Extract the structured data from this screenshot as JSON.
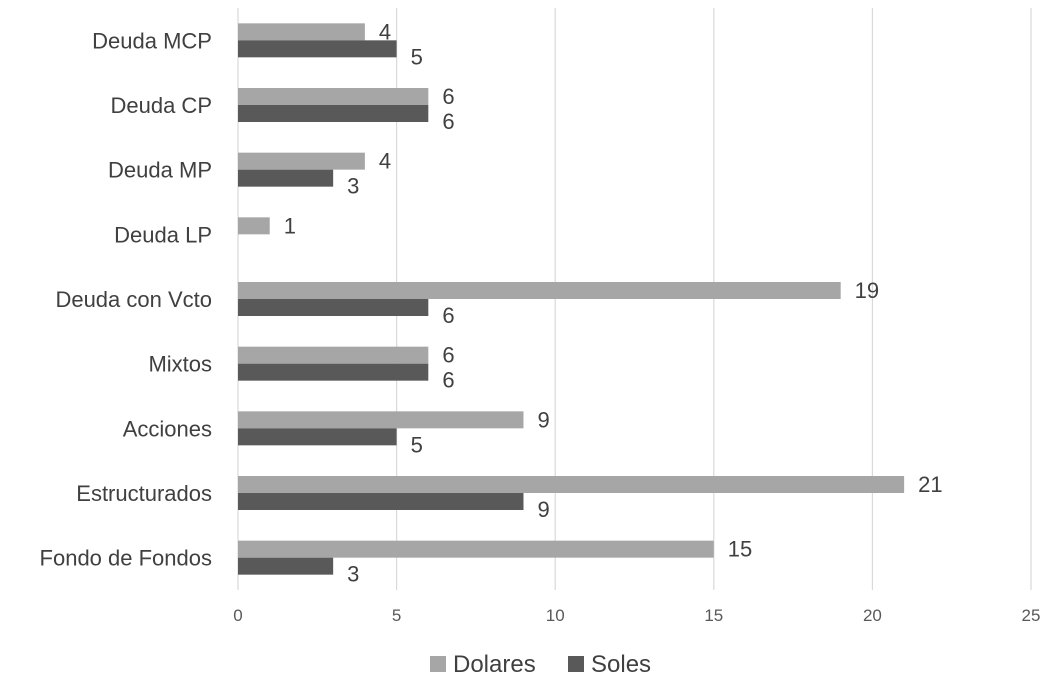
{
  "chart_data": {
    "type": "bar",
    "orientation": "horizontal",
    "categories": [
      "Deuda MCP",
      "Deuda CP",
      "Deuda MP",
      "Deuda LP",
      "Deuda con Vcto",
      "Mixtos",
      "Acciones",
      "Estructurados",
      "Fondo de Fondos"
    ],
    "series": [
      {
        "name": "Dolares",
        "color": "#a6a6a6",
        "values": [
          4,
          6,
          4,
          1,
          19,
          6,
          9,
          21,
          15
        ]
      },
      {
        "name": "Soles",
        "color": "#595959",
        "values": [
          5,
          6,
          3,
          null,
          6,
          6,
          5,
          9,
          3
        ]
      }
    ],
    "xlim": [
      0,
      25
    ],
    "xticks": [
      "0",
      "5",
      "10",
      "15",
      "20",
      "25"
    ],
    "grid": true,
    "legend_position": "bottom"
  }
}
